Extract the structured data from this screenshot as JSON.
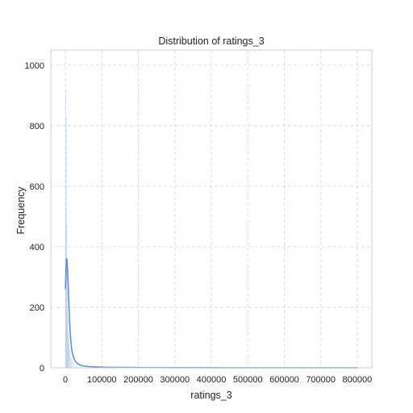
{
  "chart_data": {
    "type": "histogram",
    "title": "Distribution of ratings_3",
    "xlabel": "ratings_3",
    "ylabel": "Frequency",
    "xlim": [
      -40000,
      840000
    ],
    "ylim": [
      0,
      1050
    ],
    "xticks": [
      0,
      100000,
      200000,
      300000,
      400000,
      500000,
      600000,
      700000,
      800000
    ],
    "yticks": [
      0,
      200,
      400,
      600,
      800,
      1000
    ],
    "grid": true,
    "bar_color": "#b7cdf0",
    "kde_color": "#5b8ee8",
    "histogram_bins": [
      {
        "x": 0,
        "value": 920
      },
      {
        "x": 800,
        "value": 520
      },
      {
        "x": 1600,
        "value": 830
      },
      {
        "x": 2400,
        "value": 480
      },
      {
        "x": 3200,
        "value": 330
      },
      {
        "x": 4000,
        "value": 260
      },
      {
        "x": 4800,
        "value": 200
      },
      {
        "x": 5600,
        "value": 160
      },
      {
        "x": 6400,
        "value": 130
      },
      {
        "x": 7200,
        "value": 110
      },
      {
        "x": 8000,
        "value": 95
      },
      {
        "x": 9600,
        "value": 80
      },
      {
        "x": 11200,
        "value": 60
      },
      {
        "x": 13000,
        "value": 45
      },
      {
        "x": 15000,
        "value": 35
      },
      {
        "x": 18000,
        "value": 25
      },
      {
        "x": 22000,
        "value": 18
      },
      {
        "x": 28000,
        "value": 12
      },
      {
        "x": 36000,
        "value": 8
      },
      {
        "x": 50000,
        "value": 5
      },
      {
        "x": 70000,
        "value": 3
      },
      {
        "x": 100000,
        "value": 2
      },
      {
        "x": 150000,
        "value": 1
      },
      {
        "x": 250000,
        "value": 1
      },
      {
        "x": 400000,
        "value": 1
      },
      {
        "x": 600000,
        "value": 1
      },
      {
        "x": 780000,
        "value": 1
      }
    ],
    "kde": [
      {
        "x": 0,
        "y": 260
      },
      {
        "x": 1500,
        "y": 320
      },
      {
        "x": 3000,
        "y": 362
      },
      {
        "x": 4500,
        "y": 355
      },
      {
        "x": 6000,
        "y": 320
      },
      {
        "x": 8000,
        "y": 260
      },
      {
        "x": 10000,
        "y": 195
      },
      {
        "x": 12500,
        "y": 130
      },
      {
        "x": 15000,
        "y": 85
      },
      {
        "x": 18000,
        "y": 55
      },
      {
        "x": 22000,
        "y": 35
      },
      {
        "x": 27000,
        "y": 22
      },
      {
        "x": 33000,
        "y": 14
      },
      {
        "x": 40000,
        "y": 9
      },
      {
        "x": 50000,
        "y": 6
      },
      {
        "x": 65000,
        "y": 4
      },
      {
        "x": 85000,
        "y": 3
      },
      {
        "x": 110000,
        "y": 2
      },
      {
        "x": 150000,
        "y": 1.5
      },
      {
        "x": 200000,
        "y": 1
      },
      {
        "x": 300000,
        "y": 0.5
      },
      {
        "x": 450000,
        "y": 0.3
      },
      {
        "x": 600000,
        "y": 0.2
      },
      {
        "x": 800000,
        "y": 0.1
      }
    ]
  }
}
